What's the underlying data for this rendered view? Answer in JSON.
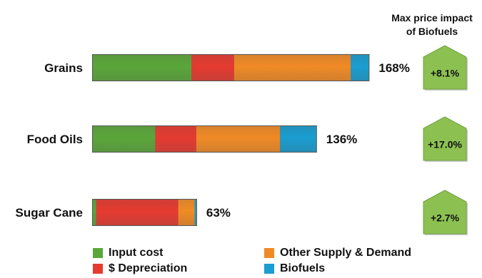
{
  "chart_data": {
    "type": "bar",
    "stacked": true,
    "orientation": "horizontal",
    "categories": [
      "Grains",
      "Food Oils",
      "Sugar Cane"
    ],
    "series": [
      {
        "name": "Input cost",
        "color": "#5aa63a",
        "values": [
          60,
          38,
          2
        ]
      },
      {
        "name": "$ Depreciation",
        "color": "#e53a30",
        "values": [
          26,
          25,
          50
        ]
      },
      {
        "name": "Other Supply & Demand",
        "color": "#f08a25",
        "values": [
          71,
          51,
          10
        ]
      },
      {
        "name": "Biofuels",
        "color": "#1a9dd0",
        "values": [
          11,
          22,
          1
        ]
      }
    ],
    "totals": [
      "168%",
      "136%",
      "63%"
    ],
    "impact_header": [
      "Max price impact",
      "of Biofuels"
    ],
    "impacts": [
      "+8.1%",
      "+17.0%",
      "+2.7%"
    ],
    "impact_color": "#8cc152",
    "xlim": [
      0,
      168
    ],
    "legend_position": "bottom"
  }
}
